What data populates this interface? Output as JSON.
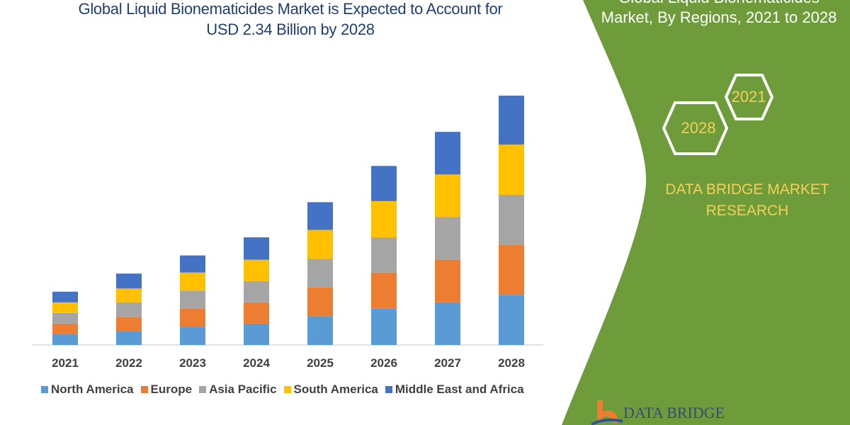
{
  "title_line1": "Global Liquid Bionematicides Market is Expected to Account for",
  "title_line2": "USD 2.34 Billion by 2028",
  "side_panel": {
    "title_line1": "Global Liquid Bionematicides",
    "title_line2": "Market, By Regions, 2021 to 2028",
    "hex_1": "2021",
    "hex_2": "2028",
    "brand_line1": "DATA BRIDGE MARKET",
    "brand_line2": "RESEARCH",
    "logo_text": "DATA BRIDGE",
    "green": "#6f9c3a",
    "accent": "#f2d15a"
  },
  "chart_data": {
    "type": "bar",
    "stacked": true,
    "title": "Global Liquid Bionematicides Market is Expected to Account for USD 2.34 Billion by 2028",
    "xlabel": "",
    "ylabel": "",
    "categories": [
      "2021",
      "2022",
      "2023",
      "2024",
      "2025",
      "2026",
      "2027",
      "2028"
    ],
    "series": [
      {
        "name": "North America",
        "color": "#5b9bd5",
        "values": [
          0.1,
          0.13,
          0.17,
          0.2,
          0.27,
          0.34,
          0.4,
          0.47
        ]
      },
      {
        "name": "Europe",
        "color": "#ed7d31",
        "values": [
          0.1,
          0.13,
          0.17,
          0.2,
          0.27,
          0.34,
          0.4,
          0.47
        ]
      },
      {
        "name": "Asia Pacific",
        "color": "#a5a5a5",
        "values": [
          0.1,
          0.14,
          0.17,
          0.2,
          0.27,
          0.33,
          0.4,
          0.47
        ]
      },
      {
        "name": "South America",
        "color": "#ffc000",
        "values": [
          0.1,
          0.13,
          0.17,
          0.2,
          0.27,
          0.34,
          0.4,
          0.47
        ]
      },
      {
        "name": "Middle East and Africa",
        "color": "#4472c4",
        "values": [
          0.1,
          0.14,
          0.16,
          0.21,
          0.26,
          0.33,
          0.4,
          0.46
        ]
      }
    ],
    "ylim": [
      0,
      2.4
    ],
    "grid": false,
    "legend": "bottom"
  }
}
